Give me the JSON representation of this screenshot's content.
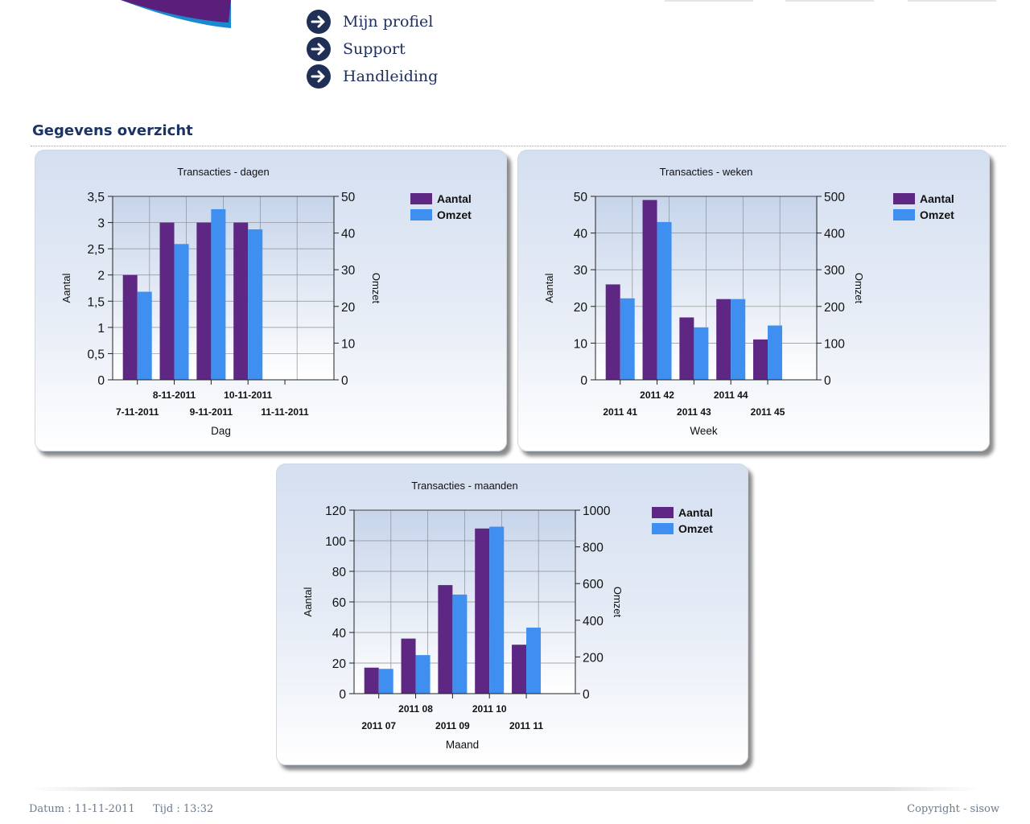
{
  "nav": {
    "items": [
      {
        "label": "Mijn profiel"
      },
      {
        "label": "Support"
      },
      {
        "label": "Handleiding"
      }
    ]
  },
  "colors": {
    "aantal": "#5e2783",
    "omzet": "#3f8ff0",
    "title": "#1b3466"
  },
  "page": {
    "section_title": "Gegevens overzicht"
  },
  "footer": {
    "datum": "Datum : 11-11-2011",
    "tijd": "Tijd : 13:32",
    "copyright": "Copyright - sisow"
  },
  "chart_data": [
    {
      "type": "bar",
      "title": "Transacties - dagen",
      "xlabel": "Dag",
      "ylabel": "Aantal",
      "y2label": "Omzet",
      "categories": [
        "7-11-2011",
        "8-11-2011",
        "9-11-2011",
        "10-11-2011",
        "11-11-2011"
      ],
      "series": [
        {
          "name": "Aantal",
          "axis": "left",
          "values": [
            2,
            3,
            3,
            3,
            null
          ]
        },
        {
          "name": "Omzet",
          "axis": "right",
          "values": [
            24,
            37,
            46.5,
            41,
            null
          ]
        }
      ],
      "ylim": [
        0,
        3.5
      ],
      "yticks": [
        "0",
        "0,5",
        "1",
        "1,5",
        "2",
        "2,5",
        "3",
        "3,5"
      ],
      "y2lim": [
        0,
        50
      ],
      "y2ticks": [
        "0",
        "10",
        "20",
        "30",
        "40",
        "50"
      ],
      "legend": "top-right"
    },
    {
      "type": "bar",
      "title": "Transacties - weken",
      "xlabel": "Week",
      "ylabel": "Aantal",
      "y2label": "Omzet",
      "categories": [
        "2011 41",
        "2011 42",
        "2011 43",
        "2011 44",
        "2011 45"
      ],
      "series": [
        {
          "name": "Aantal",
          "axis": "left",
          "values": [
            26,
            49,
            17,
            22,
            11
          ]
        },
        {
          "name": "Omzet",
          "axis": "right",
          "values": [
            222,
            430,
            143,
            220,
            148
          ]
        }
      ],
      "ylim": [
        0,
        50
      ],
      "yticks": [
        "0",
        "10",
        "20",
        "30",
        "40",
        "50"
      ],
      "y2lim": [
        0,
        500
      ],
      "y2ticks": [
        "0",
        "100",
        "200",
        "300",
        "400",
        "500"
      ],
      "legend": "top-right"
    },
    {
      "type": "bar",
      "title": "Transacties - maanden",
      "xlabel": "Maand",
      "ylabel": "Aantal",
      "y2label": "Omzet",
      "categories": [
        "2011 07",
        "2011 08",
        "2011 09",
        "2011 10",
        "2011 11"
      ],
      "series": [
        {
          "name": "Aantal",
          "axis": "left",
          "values": [
            17,
            36,
            71,
            108,
            32
          ]
        },
        {
          "name": "Omzet",
          "axis": "right",
          "values": [
            135,
            210,
            540,
            910,
            360
          ]
        }
      ],
      "ylim": [
        0,
        120
      ],
      "yticks": [
        "0",
        "20",
        "40",
        "60",
        "80",
        "100",
        "120"
      ],
      "y2lim": [
        0,
        1000
      ],
      "y2ticks": [
        "0",
        "200",
        "400",
        "600",
        "800",
        "1000"
      ],
      "legend": "top-right"
    }
  ]
}
